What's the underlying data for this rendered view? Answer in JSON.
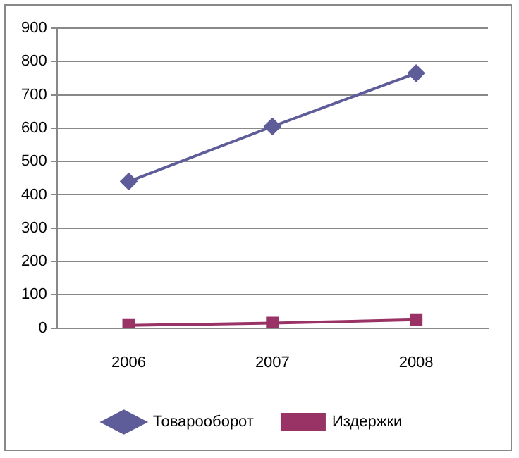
{
  "chart_data": {
    "type": "line",
    "categories": [
      "2006",
      "2007",
      "2008"
    ],
    "series": [
      {
        "name": "Товарооборот",
        "color": "#5e5c99",
        "marker": "diamond",
        "values": [
          440,
          605,
          765
        ]
      },
      {
        "name": "Издержки",
        "color": "#993366",
        "marker": "square",
        "values": [
          8,
          15,
          25
        ]
      }
    ],
    "ylim": [
      0,
      900
    ],
    "yticks": [
      0,
      100,
      200,
      300,
      400,
      500,
      600,
      700,
      800,
      900
    ],
    "grid": "y",
    "legend": "bottom"
  }
}
